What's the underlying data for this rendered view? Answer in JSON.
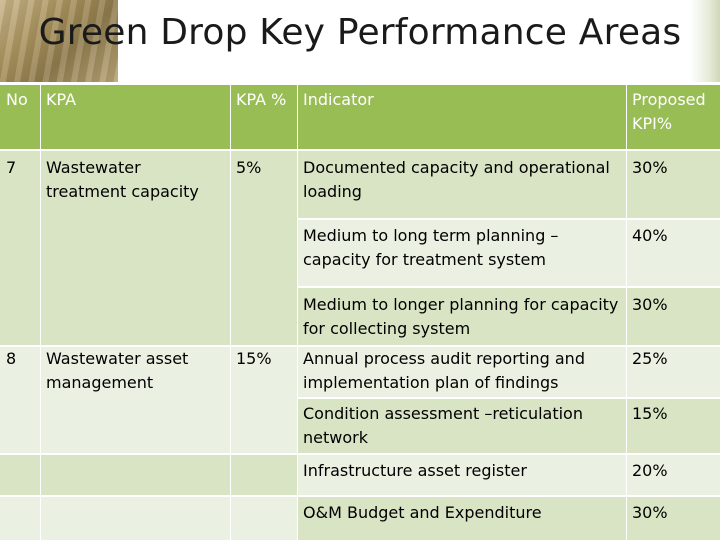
{
  "title": "Green Drop Key Performance Areas",
  "header": {
    "no": "No",
    "kpa": "KPA",
    "kpa_pct": "KPA %",
    "indicator": "Indicator",
    "proposed_kpi": "Proposed KPI%"
  },
  "kpas": [
    {
      "no": "7",
      "name": "Wastewater treatment capacity",
      "pct": "5%"
    },
    {
      "no": "8",
      "name": "Wastewater asset management",
      "pct": "15%"
    }
  ],
  "indicators": [
    {
      "text": "Documented capacity and operational loading",
      "kpi": "30%"
    },
    {
      "text": "Medium to long term planning – capacity for treatment system",
      "kpi": "40%"
    },
    {
      "text": "Medium to longer planning for capacity for collecting system",
      "kpi": "30%"
    },
    {
      "text": "Annual process audit reporting and implementation plan of findings",
      "kpi": "25%"
    },
    {
      "text": "Condition assessment –reticulation network",
      "kpi": "15%"
    },
    {
      "text": "Infrastructure asset register",
      "kpi": "20%"
    },
    {
      "text": "O&M Budget and Expenditure",
      "kpi": "30%"
    }
  ]
}
